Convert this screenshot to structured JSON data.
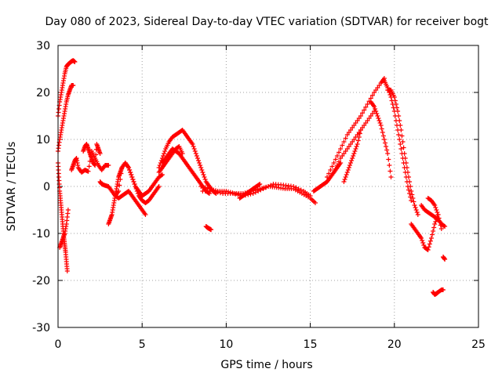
{
  "chart_data": {
    "type": "scatter",
    "title": "Day 080 of 2023, Sidereal Day-to-day VTEC variation (SDTVAR) for receiver bogt",
    "xlabel": "GPS time / hours",
    "ylabel": "SDTVAR / TECUs",
    "xlim": [
      0,
      25
    ],
    "ylim": [
      -30,
      30
    ],
    "x_ticks": [
      0,
      5,
      10,
      15,
      20,
      25
    ],
    "x_tick_labels": [
      "0",
      "5",
      "10",
      "15",
      "20",
      "25"
    ],
    "y_ticks": [
      -30,
      -20,
      -10,
      0,
      10,
      20,
      30
    ],
    "y_tick_labels": [
      "-30",
      "-20",
      "-10",
      "0",
      "10",
      "20",
      "30"
    ],
    "grid": true,
    "marker": "+",
    "color": "#ff0000",
    "series": [
      {
        "name": "track_00_01_up",
        "x": [
          0.0,
          0.1,
          0.2,
          0.3,
          0.4,
          0.5,
          0.6,
          0.7,
          0.8,
          0.9,
          1.0
        ],
        "y": [
          15,
          18,
          20,
          22,
          24,
          25.5,
          26,
          26.3,
          26.6,
          26.8,
          26.5
        ]
      },
      {
        "name": "track_00_01_mid",
        "x": [
          0.0,
          0.1,
          0.2,
          0.3,
          0.4,
          0.5,
          0.6,
          0.7,
          0.8,
          0.9
        ],
        "y": [
          7.5,
          10,
          12,
          14,
          16,
          18,
          19.5,
          20.5,
          21.5,
          21.5
        ]
      },
      {
        "name": "track_00_01_down",
        "x": [
          0.0,
          0.05,
          0.1,
          0.15,
          0.2,
          0.25,
          0.3,
          0.35,
          0.4,
          0.45,
          0.5,
          0.55
        ],
        "y": [
          5,
          2,
          -1,
          -3,
          -5,
          -7,
          -9,
          -11,
          -12.5,
          -14,
          -16,
          -18
        ]
      },
      {
        "name": "track_00_01_low",
        "x": [
          0.1,
          0.2,
          0.3,
          0.4,
          0.5,
          0.6
        ],
        "y": [
          -13,
          -12,
          -11,
          -10,
          -8,
          -5
        ]
      },
      {
        "name": "track_01_03",
        "x": [
          0.8,
          0.9,
          1.0,
          1.1,
          1.2,
          1.4,
          1.6,
          1.8,
          2.0,
          2.2,
          2.4,
          2.6,
          2.8,
          3.0
        ],
        "y": [
          3.5,
          4.5,
          5.5,
          6,
          4,
          3,
          3.5,
          3.2,
          7.5,
          6,
          4.5,
          3.5,
          4.5,
          4.5
        ]
      },
      {
        "name": "track_02_03_a",
        "x": [
          1.5,
          1.6,
          1.7,
          1.8,
          1.9,
          2.0,
          2.1,
          2.2,
          2.3,
          2.4,
          2.5
        ],
        "y": [
          7.5,
          8.5,
          9,
          8,
          7,
          6,
          5,
          4.5,
          9,
          8,
          7
        ]
      },
      {
        "name": "track_03_04",
        "x": [
          2.5,
          2.6,
          2.8,
          3.0,
          3.2,
          3.4,
          3.6,
          3.8,
          4.0,
          4.2,
          4.4,
          4.6,
          4.8,
          5.0
        ],
        "y": [
          1,
          0.5,
          0.2,
          0,
          -1,
          -2,
          -1,
          4,
          5,
          4,
          2,
          0,
          -1,
          -2
        ]
      },
      {
        "name": "track_03_04_low",
        "x": [
          3.0,
          3.1,
          3.2,
          3.3,
          3.4,
          3.5,
          3.6,
          3.7,
          3.8
        ],
        "y": [
          -8,
          -7,
          -6,
          -4,
          -2,
          0,
          2,
          3,
          4
        ]
      },
      {
        "name": "track_03_05_mid",
        "x": [
          3.4,
          3.6,
          3.8,
          4.0,
          4.2,
          4.4,
          4.6,
          4.8,
          5.0,
          5.2
        ],
        "y": [
          -2,
          -2.5,
          -2,
          -1.5,
          -1,
          -2,
          -3,
          -4,
          -5,
          -6
        ]
      },
      {
        "name": "track_04_06_a",
        "x": [
          3.8,
          4.0,
          4.2,
          4.4,
          4.6,
          4.8,
          5.0,
          5.2,
          5.4,
          5.6,
          5.8,
          6.0
        ],
        "y": [
          4,
          5,
          4,
          2,
          0,
          -2,
          -3,
          -3.5,
          -3,
          -2,
          -1,
          0
        ]
      },
      {
        "name": "track_05_06",
        "x": [
          5.0,
          5.2,
          5.4,
          5.6,
          5.8,
          6.0,
          6.2
        ],
        "y": [
          -2,
          -1.5,
          -1,
          0,
          1,
          2,
          2.5
        ]
      },
      {
        "name": "track_06_09_hump_a",
        "x": [
          6.0,
          6.2,
          6.4,
          6.6,
          6.8,
          7.0,
          7.2,
          7.4,
          7.6,
          7.8,
          8.0,
          8.2,
          8.4,
          8.6,
          8.8,
          9.0,
          9.2,
          9.4
        ],
        "y": [
          4,
          6,
          8,
          9.5,
          10.5,
          11,
          11.5,
          12,
          11,
          10,
          9,
          7,
          5,
          3,
          1,
          0,
          -1,
          -1.5
        ]
      },
      {
        "name": "track_06_09_hump_b",
        "x": [
          6.2,
          6.4,
          6.6,
          6.8,
          7.0,
          7.2,
          7.4,
          7.6,
          7.8,
          8.0,
          8.2,
          8.4,
          8.6,
          8.8,
          9.0
        ],
        "y": [
          5,
          6,
          7,
          8,
          7.5,
          7,
          6,
          5,
          4,
          3,
          2,
          1,
          0,
          -1,
          -1.5
        ]
      },
      {
        "name": "track_06_08_lo",
        "x": [
          6.0,
          6.2,
          6.4,
          6.6,
          6.8,
          7.0,
          7.2,
          7.4
        ],
        "y": [
          3,
          4,
          5,
          6,
          7,
          8,
          8.5,
          7
        ]
      },
      {
        "name": "track_09_isolated",
        "x": [
          8.8,
          8.9,
          9.0,
          9.1
        ],
        "y": [
          -8.5,
          -8.8,
          -9,
          -9.2
        ]
      },
      {
        "name": "track_08_15_flat_a",
        "x": [
          8.5,
          9.0,
          9.5,
          10.0,
          10.5,
          11.0,
          11.5,
          12.0,
          12.5,
          13.0,
          13.5,
          14.0,
          14.5,
          15.0,
          15.3
        ],
        "y": [
          0,
          -0.5,
          -1,
          -1,
          -1.5,
          -1.5,
          -1,
          -0.5,
          0,
          -0.2,
          -0.5,
          -0.5,
          -1.5,
          -2.5,
          -3.5
        ]
      },
      {
        "name": "track_08_15_flat_b",
        "x": [
          8.6,
          9.2,
          9.8,
          10.4,
          11.0,
          11.6,
          12.2,
          12.8,
          13.4,
          14.0,
          14.6,
          15.0
        ],
        "y": [
          -1,
          -1,
          -1.5,
          -1.5,
          -2,
          -1.5,
          -0.5,
          0.5,
          0.3,
          0,
          -1,
          -2
        ]
      },
      {
        "name": "track_11_12",
        "x": [
          10.8,
          11.0,
          11.2,
          11.4,
          11.6,
          11.8,
          12.0
        ],
        "y": [
          -2.5,
          -2,
          -1.5,
          -1,
          -0.5,
          0,
          0.5
        ]
      },
      {
        "name": "track_15_17",
        "x": [
          15.2,
          15.4,
          15.6,
          15.8,
          16.0,
          16.2,
          16.4,
          16.6,
          16.8
        ],
        "y": [
          -1,
          -0.5,
          0,
          0.5,
          1,
          2,
          3,
          4,
          5
        ]
      },
      {
        "name": "track_16_19_rise_a",
        "x": [
          16.0,
          16.4,
          16.8,
          17.2,
          17.6,
          18.0,
          18.4,
          18.8,
          19.2,
          19.4
        ],
        "y": [
          2,
          5,
          8,
          11,
          13,
          15,
          17.5,
          20,
          22,
          23
        ]
      },
      {
        "name": "track_16_19_rise_b",
        "x": [
          16.4,
          16.8,
          17.2,
          17.6,
          18.0,
          18.4,
          18.8
        ],
        "y": [
          3,
          6,
          8,
          10,
          12,
          14,
          16
        ]
      },
      {
        "name": "track_17_18_pts",
        "x": [
          17.0,
          17.2,
          17.4,
          17.6,
          17.8,
          18.0
        ],
        "y": [
          1,
          3,
          5,
          7,
          9,
          12
        ]
      },
      {
        "name": "track_19_21_fall_a",
        "x": [
          19.4,
          19.6,
          19.8,
          20.0,
          20.2,
          20.4,
          20.6,
          20.8,
          21.0
        ],
        "y": [
          22.5,
          21,
          19,
          16,
          12,
          8,
          4,
          0,
          -3
        ]
      },
      {
        "name": "track_19_21_fall_b",
        "x": [
          19.6,
          19.8,
          20.0,
          20.2,
          20.4,
          20.6,
          20.8,
          21.0,
          21.2,
          21.4
        ],
        "y": [
          20.5,
          20.5,
          19,
          16,
          12,
          7,
          3,
          -1,
          -4,
          -6
        ]
      },
      {
        "name": "track_19_20_mid",
        "x": [
          18.6,
          18.8,
          19.0,
          19.2,
          19.4,
          19.6,
          19.8
        ],
        "y": [
          18,
          17,
          15,
          13,
          10,
          7,
          2
        ]
      },
      {
        "name": "track_21_22",
        "x": [
          21.0,
          21.2,
          21.4,
          21.6,
          21.8,
          22.0,
          22.2,
          22.4,
          22.6
        ],
        "y": [
          -8,
          -9,
          -10,
          -11,
          -13,
          -13.5,
          -11,
          -8,
          -6
        ]
      },
      {
        "name": "track_21_23_b",
        "x": [
          21.6,
          21.8,
          22.0,
          22.2,
          22.4,
          22.6,
          22.8,
          23.0
        ],
        "y": [
          -4,
          -5,
          -5.5,
          -6,
          -6.5,
          -7,
          -8,
          -8.5
        ]
      },
      {
        "name": "track_22_23_c",
        "x": [
          22.0,
          22.2,
          22.4,
          22.6,
          22.8
        ],
        "y": [
          -2.5,
          -3,
          -4,
          -6,
          -9
        ]
      },
      {
        "name": "track_22_23_low",
        "x": [
          22.3,
          22.4,
          22.5,
          22.6,
          22.8,
          22.9
        ],
        "y": [
          -22.5,
          -23,
          -22.8,
          -22.5,
          -22,
          -22
        ]
      },
      {
        "name": "track_23_pt",
        "x": [
          22.9,
          23.0
        ],
        "y": [
          -15,
          -15.5
        ]
      }
    ]
  }
}
